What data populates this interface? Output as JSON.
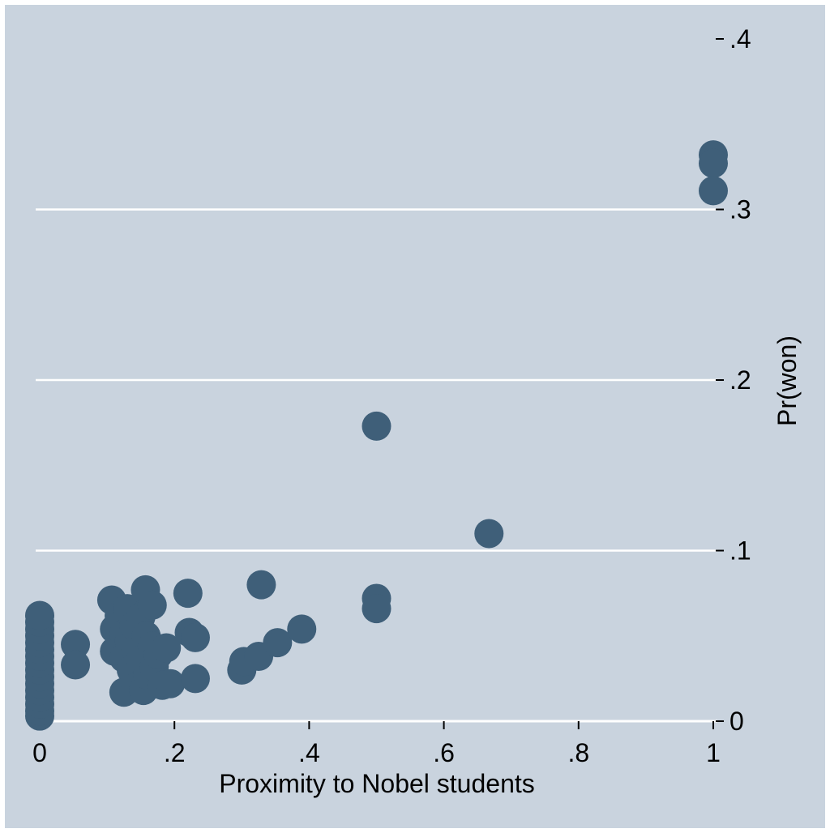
{
  "chart_data": {
    "type": "scatter",
    "title": "",
    "xlabel": "Proximity to Nobel students",
    "ylabel": "Pr(won)",
    "xlim": [
      0,
      1
    ],
    "ylim": [
      0,
      0.4
    ],
    "x_ticks": [
      0,
      0.2,
      0.4,
      0.6,
      0.8,
      1
    ],
    "x_tick_labels": [
      "0",
      ".2",
      ".4",
      ".6",
      ".8",
      "1"
    ],
    "y_ticks": [
      0,
      0.1,
      0.2,
      0.3,
      0.4
    ],
    "y_tick_labels": [
      "0",
      ".1",
      ".2",
      ".3",
      ".4"
    ],
    "y_axis_side": "right",
    "grid": true,
    "colors": {
      "background": "#c9d3de",
      "marker": "#3f5f79",
      "grid": "#ffffff",
      "axis": "#ffffff"
    },
    "series": [
      {
        "points": [
          [
            0,
            0.003
          ],
          [
            0,
            0.006
          ],
          [
            0,
            0.01
          ],
          [
            0,
            0.014
          ],
          [
            0,
            0.018
          ],
          [
            0,
            0.022
          ],
          [
            0,
            0.026
          ],
          [
            0,
            0.03
          ],
          [
            0,
            0.034
          ],
          [
            0,
            0.038
          ],
          [
            0,
            0.042
          ],
          [
            0,
            0.046
          ],
          [
            0,
            0.05
          ],
          [
            0,
            0.054
          ],
          [
            0,
            0.058
          ],
          [
            0,
            0.062
          ],
          [
            0.053,
            0.045
          ],
          [
            0.053,
            0.033
          ],
          [
            0.107,
            0.071
          ],
          [
            0.111,
            0.054
          ],
          [
            0.111,
            0.041
          ],
          [
            0.118,
            0.062
          ],
          [
            0.125,
            0.051
          ],
          [
            0.125,
            0.037
          ],
          [
            0.125,
            0.017
          ],
          [
            0.13,
            0.066
          ],
          [
            0.133,
            0.047
          ],
          [
            0.136,
            0.03
          ],
          [
            0.14,
            0.056
          ],
          [
            0.143,
            0.042
          ],
          [
            0.143,
            0.02
          ],
          [
            0.15,
            0.061
          ],
          [
            0.15,
            0.036
          ],
          [
            0.154,
            0.018
          ],
          [
            0.157,
            0.077
          ],
          [
            0.158,
            0.05
          ],
          [
            0.16,
            0.027
          ],
          [
            0.167,
            0.068
          ],
          [
            0.167,
            0.044
          ],
          [
            0.17,
            0.032
          ],
          [
            0.176,
            0.039
          ],
          [
            0.182,
            0.021
          ],
          [
            0.188,
            0.043
          ],
          [
            0.194,
            0.022
          ],
          [
            0.22,
            0.075
          ],
          [
            0.222,
            0.052
          ],
          [
            0.231,
            0.049
          ],
          [
            0.231,
            0.025
          ],
          [
            0.3,
            0.03
          ],
          [
            0.303,
            0.035
          ],
          [
            0.325,
            0.038
          ],
          [
            0.329,
            0.08
          ],
          [
            0.353,
            0.046
          ],
          [
            0.389,
            0.054
          ],
          [
            0.5,
            0.173
          ],
          [
            0.5,
            0.072
          ],
          [
            0.5,
            0.066
          ],
          [
            0.667,
            0.11
          ],
          [
            1.0,
            0.332
          ],
          [
            1.0,
            0.327
          ],
          [
            1.0,
            0.311
          ]
        ]
      }
    ]
  }
}
